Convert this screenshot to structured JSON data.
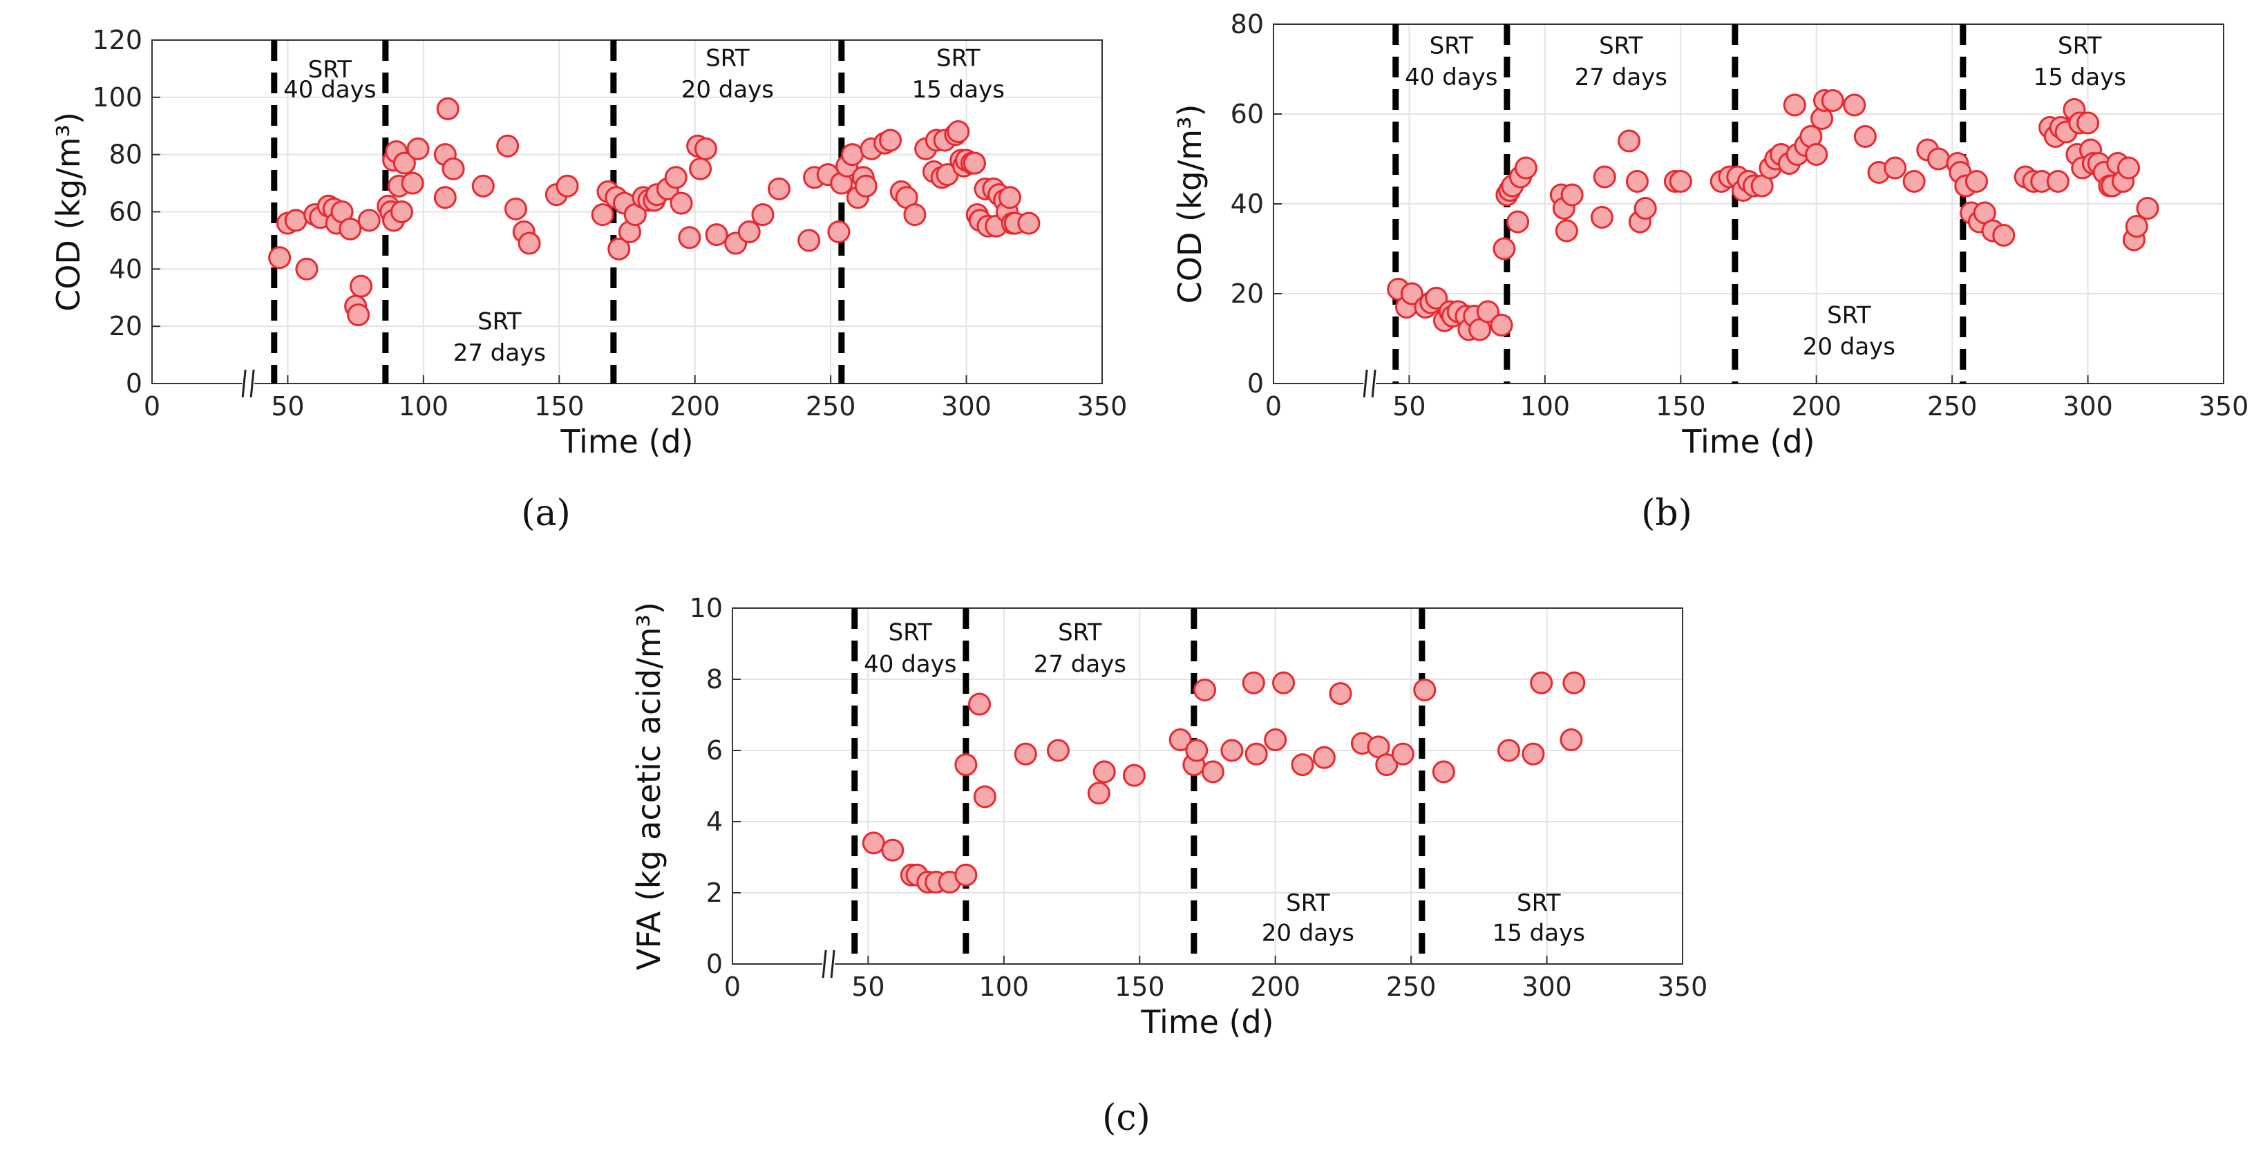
{
  "chart_data": [
    {
      "id": "a",
      "type": "scatter",
      "panel_label": "(a)",
      "xlabel": "Time (d)",
      "ylabel": "COD (kg/m³)",
      "xlim": [
        0,
        350
      ],
      "ylim": [
        0,
        120
      ],
      "xticks": [
        0,
        50,
        100,
        150,
        200,
        250,
        300,
        350
      ],
      "yticks": [
        0,
        20,
        40,
        60,
        80,
        100,
        120
      ],
      "axis_break_x": 40,
      "srt_lines": [
        45,
        86,
        170,
        254
      ],
      "srt_labels": [
        {
          "lines": [
            "SRT",
            "40 days"
          ],
          "x": 65.5,
          "y": 107,
          "y2": 100
        },
        {
          "lines": [
            "SRT",
            "27 days"
          ],
          "x": 128,
          "y": 19,
          "y2": 8
        },
        {
          "lines": [
            "SRT",
            "20 days"
          ],
          "x": 212,
          "y": 111,
          "y2": 100
        },
        {
          "lines": [
            "SRT",
            "15 days"
          ],
          "x": 297,
          "y": 111,
          "y2": 100
        }
      ],
      "series": [
        {
          "name": "COD",
          "x": [
            47,
            50,
            53,
            57,
            60,
            62,
            65,
            67,
            68,
            70,
            73,
            75,
            76,
            77,
            80,
            87,
            88,
            89,
            89,
            90,
            91,
            92,
            93,
            96,
            98,
            108,
            108,
            109,
            111,
            122,
            131,
            134,
            137,
            139,
            149,
            153,
            166,
            168,
            171,
            172,
            174,
            176,
            178,
            181,
            183,
            185,
            186,
            190,
            193,
            195,
            198,
            201,
            202,
            204,
            208,
            215,
            220,
            225,
            231,
            242,
            244,
            249,
            253,
            254,
            256,
            258,
            260,
            262,
            263,
            265,
            270,
            272,
            276,
            278,
            281,
            285,
            288,
            289,
            291,
            292,
            293,
            296,
            297,
            298,
            299,
            300,
            302,
            303,
            303,
            304,
            305,
            307,
            308,
            310,
            311,
            312,
            314,
            315,
            316,
            317,
            318,
            323
          ],
          "y": [
            44,
            56,
            57,
            40,
            59,
            58,
            62,
            61,
            56,
            60,
            54,
            27,
            24,
            34,
            57,
            62,
            60,
            57,
            78,
            81,
            69,
            60,
            77,
            70,
            82,
            80,
            65,
            96,
            75,
            69,
            83,
            61,
            53,
            49,
            66,
            69,
            59,
            67,
            65,
            47,
            63,
            53,
            59,
            65,
            64,
            64,
            66,
            68,
            72,
            63,
            51,
            83,
            75,
            82,
            52,
            49,
            53,
            59,
            68,
            50,
            72,
            73,
            53,
            70,
            76,
            80,
            65,
            72,
            69,
            82,
            84,
            85,
            67,
            65,
            59,
            82,
            74,
            85,
            72,
            85,
            73,
            87,
            88,
            78,
            76,
            78,
            77,
            77,
            77,
            59,
            57,
            68,
            55,
            68,
            55,
            66,
            64,
            60,
            65,
            56,
            56,
            56
          ]
        }
      ]
    },
    {
      "id": "b",
      "type": "scatter",
      "panel_label": "(b)",
      "xlabel": "Time (d)",
      "ylabel": "COD (kg/m³)",
      "xlim": [
        0,
        350
      ],
      "ylim": [
        0,
        80
      ],
      "xticks": [
        0,
        50,
        100,
        150,
        200,
        250,
        300,
        350
      ],
      "yticks": [
        0,
        20,
        40,
        60,
        80
      ],
      "axis_break_x": 40,
      "srt_lines": [
        45,
        86,
        170,
        254
      ],
      "srt_labels": [
        {
          "lines": [
            "SRT",
            "40 days"
          ],
          "x": 65.5,
          "y": 73.5,
          "y2": 66.5
        },
        {
          "lines": [
            "SRT",
            "27 days"
          ],
          "x": 128,
          "y": 73.5,
          "y2": 66.5
        },
        {
          "lines": [
            "SRT",
            "20 days"
          ],
          "x": 212,
          "y": 13.5,
          "y2": 6.5
        },
        {
          "lines": [
            "SRT",
            "15 days"
          ],
          "x": 297,
          "y": 73.5,
          "y2": 66.5
        }
      ],
      "series": [
        {
          "name": "COD",
          "x": [
            46,
            49,
            51,
            56,
            58,
            60,
            63,
            65,
            66,
            68,
            71,
            72,
            74,
            76,
            79,
            84,
            85,
            86,
            87,
            88,
            90,
            91,
            93,
            106,
            107,
            108,
            110,
            121,
            122,
            131,
            134,
            135,
            137,
            148,
            150,
            165,
            168,
            171,
            173,
            175,
            177,
            180,
            183,
            185,
            187,
            190,
            192,
            193,
            196,
            198,
            200,
            202,
            203,
            206,
            214,
            218,
            223,
            229,
            236,
            241,
            245,
            252,
            253,
            255,
            257,
            259,
            260,
            262,
            265,
            269,
            277,
            280,
            283,
            286,
            288,
            289,
            290,
            292,
            295,
            296,
            297,
            298,
            300,
            301,
            302,
            304,
            306,
            308,
            309,
            311,
            313,
            315,
            317,
            318,
            322
          ],
          "y": [
            21,
            17,
            20,
            17,
            18,
            19,
            14,
            16,
            15,
            16,
            15,
            12,
            15,
            12,
            16,
            13,
            30,
            42,
            43,
            44,
            36,
            46,
            48,
            42,
            39,
            34,
            42,
            37,
            46,
            54,
            45,
            36,
            39,
            45,
            45,
            45,
            46,
            46,
            43,
            45,
            44,
            44,
            48,
            50,
            51,
            49,
            62,
            51,
            53,
            55,
            51,
            59,
            63,
            63,
            62,
            55,
            47,
            48,
            45,
            52,
            50,
            49,
            47,
            44,
            38,
            45,
            36,
            38,
            34,
            33,
            46,
            45,
            45,
            57,
            55,
            45,
            57,
            56,
            61,
            51,
            58,
            48,
            58,
            52,
            49,
            49,
            47,
            44,
            44,
            49,
            45,
            48,
            32,
            35,
            39
          ]
        }
      ]
    },
    {
      "id": "c",
      "type": "scatter",
      "panel_label": "(c)",
      "xlabel": "Time (d)",
      "ylabel": "VFA (kg acetic acid/m³)",
      "xlim": [
        0,
        350
      ],
      "ylim": [
        0,
        10
      ],
      "xticks": [
        0,
        50,
        100,
        150,
        200,
        250,
        300,
        350
      ],
      "yticks": [
        0,
        2,
        4,
        6,
        8,
        10
      ],
      "axis_break_x": 40,
      "srt_lines": [
        45,
        86,
        170,
        254
      ],
      "srt_labels": [
        {
          "lines": [
            "SRT",
            "40 days"
          ],
          "x": 65.5,
          "y": 9.1,
          "y2": 8.2
        },
        {
          "lines": [
            "SRT",
            "27 days"
          ],
          "x": 128,
          "y": 9.1,
          "y2": 8.2
        },
        {
          "lines": [
            "SRT",
            "20 days"
          ],
          "x": 212,
          "y": 1.5,
          "y2": 0.65
        },
        {
          "lines": [
            "SRT",
            "15 days"
          ],
          "x": 297,
          "y": 1.5,
          "y2": 0.65
        }
      ],
      "series": [
        {
          "name": "VFA",
          "x": [
            52,
            59,
            66,
            68,
            72,
            75,
            80,
            86,
            86,
            91,
            93,
            108,
            120,
            135,
            137,
            148,
            165,
            170,
            171,
            174,
            177,
            184,
            192,
            193,
            200,
            203,
            210,
            218,
            224,
            232,
            238,
            241,
            247,
            255,
            262,
            286,
            295,
            298,
            309,
            310
          ],
          "y": [
            3.4,
            3.2,
            2.5,
            2.5,
            2.3,
            2.3,
            2.3,
            2.5,
            5.6,
            7.3,
            4.7,
            5.9,
            6.0,
            4.8,
            5.4,
            5.3,
            6.3,
            5.6,
            6.0,
            7.7,
            5.4,
            6.0,
            7.9,
            5.9,
            6.3,
            7.9,
            5.6,
            5.8,
            7.6,
            6.2,
            6.1,
            5.6,
            5.9,
            7.7,
            5.4,
            6.0,
            5.9,
            7.9,
            6.3,
            7.9
          ]
        }
      ]
    }
  ],
  "colors": {
    "marker_fill": "#f5a9ab",
    "marker_edge": "#e8282e",
    "srt_line": "#000000",
    "grid": "#e3e3e3",
    "axis": "#333333"
  }
}
